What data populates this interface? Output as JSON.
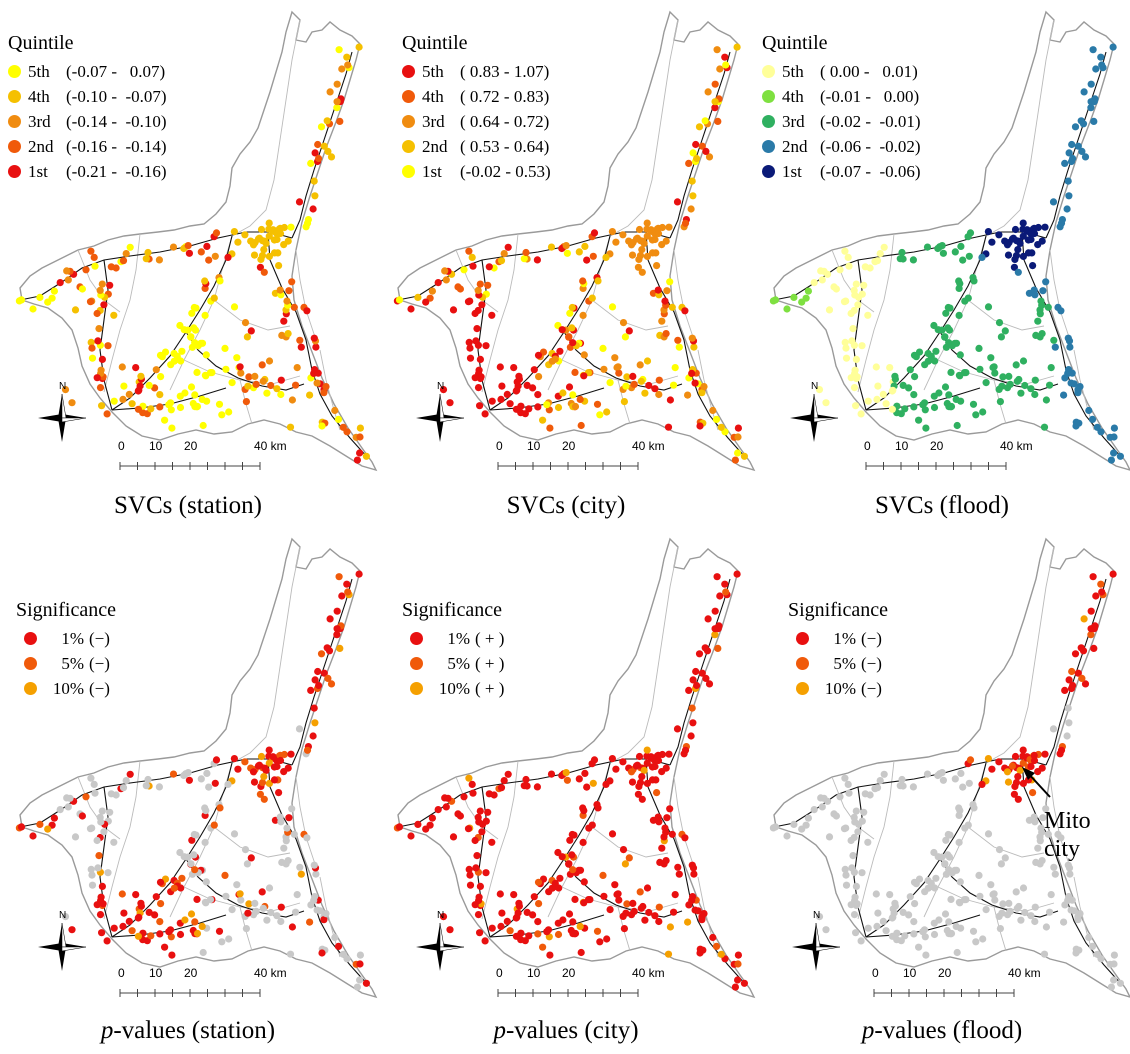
{
  "map": {
    "north_label": "N",
    "scale_labels": [
      "0",
      "10",
      "20",
      "40 km"
    ]
  },
  "panels": [
    {
      "title": "SVCs (station)",
      "legend_title": "Quintile",
      "legend": [
        {
          "rank": "5th",
          "range": "(-0.07 -   0.07)",
          "color": "#ffff00"
        },
        {
          "rank": "4th",
          "range": "(-0.10 -  -0.07)",
          "color": "#f5c000"
        },
        {
          "rank": "3rd",
          "range": "(-0.14 -  -0.10)",
          "color": "#f08c10"
        },
        {
          "rank": "2nd",
          "range": "(-0.16 -  -0.14)",
          "color": "#f05a0a"
        },
        {
          "rank": "1st",
          "range": "(-0.21 -  -0.16)",
          "color": "#e81010"
        }
      ]
    },
    {
      "title": "SVCs (city)",
      "legend_title": "Quintile",
      "legend": [
        {
          "rank": "5th",
          "range": "( 0.83 - 1.07)",
          "color": "#e81010"
        },
        {
          "rank": "4th",
          "range": "( 0.72 - 0.83)",
          "color": "#f05a0a"
        },
        {
          "rank": "3rd",
          "range": "( 0.64 - 0.72)",
          "color": "#f08c10"
        },
        {
          "rank": "2nd",
          "range": "( 0.53 - 0.64)",
          "color": "#f5c000"
        },
        {
          "rank": "1st",
          "range": "(-0.02 - 0.53)",
          "color": "#ffff00"
        }
      ]
    },
    {
      "title": "SVCs (flood)",
      "legend_title": "Quintile",
      "legend": [
        {
          "rank": "5th",
          "range": "( 0.00 -   0.01)",
          "color": "#ffff99"
        },
        {
          "rank": "4th",
          "range": "(-0.01 -   0.00)",
          "color": "#7ee040"
        },
        {
          "rank": "3rd",
          "range": "(-0.02 -  -0.01)",
          "color": "#2fb060"
        },
        {
          "rank": "2nd",
          "range": "(-0.06 -  -0.02)",
          "color": "#2a7aa8"
        },
        {
          "rank": "1st",
          "range": "(-0.07 -  -0.06)",
          "color": "#0a1a78"
        }
      ]
    },
    {
      "title_italic": "p",
      "title": "-values (station)",
      "legend_title": "Significance",
      "legend": [
        {
          "level": "1%",
          "sign": "(−)",
          "color": "#e81010"
        },
        {
          "level": "5%",
          "sign": "(−)",
          "color": "#f05a0a"
        },
        {
          "level": "10%",
          "sign": "(−)",
          "color": "#f5a000"
        }
      ]
    },
    {
      "title_italic": "p",
      "title": "-values (city)",
      "legend_title": "Significance",
      "legend": [
        {
          "level": "1%",
          "sign": "( + )",
          "color": "#e81010"
        },
        {
          "level": "5%",
          "sign": "( + )",
          "color": "#f05a0a"
        },
        {
          "level": "10%",
          "sign": "( + )",
          "color": "#f5a000"
        }
      ]
    },
    {
      "title_italic": "p",
      "title": "-values (flood)",
      "legend_title": "Significance",
      "legend": [
        {
          "level": "1%",
          "sign": "(−)",
          "color": "#e81010"
        },
        {
          "level": "5%",
          "sign": "(−)",
          "color": "#f05a0a"
        },
        {
          "level": "10%",
          "sign": "(−)",
          "color": "#f5a000"
        }
      ],
      "annotation": [
        "Mito",
        "city"
      ]
    }
  ],
  "colors": {
    "nonsignificant": "#c8c8c8",
    "boundary": "#9a9a9a",
    "rail": "#111111"
  }
}
